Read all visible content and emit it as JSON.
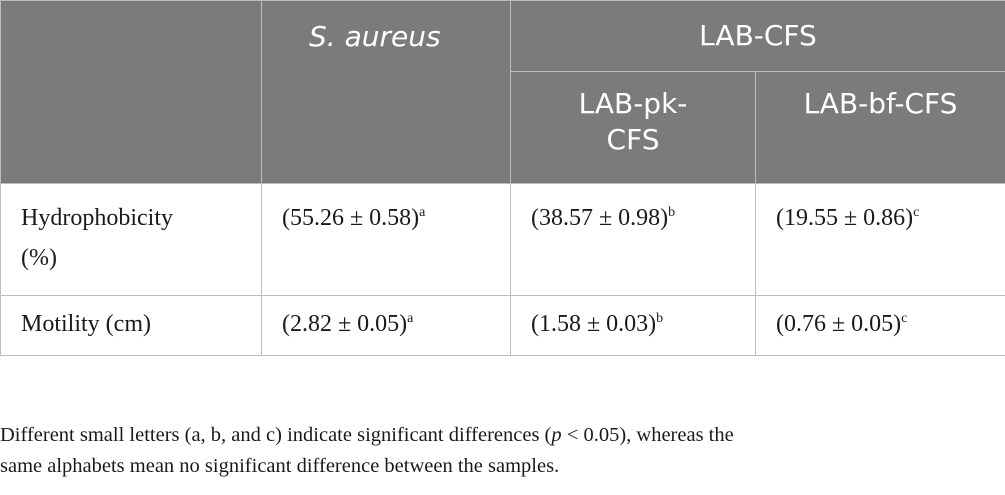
{
  "table": {
    "header": {
      "col1": "S. aureus",
      "group": "LAB-CFS",
      "col2_line1": "LAB-pk-",
      "col2_line2": "CFS",
      "col3": "LAB-bf-CFS"
    },
    "rows": [
      {
        "label_line1": "Hydrophobicity",
        "label_line2": "(%)",
        "v1": "(55.26 ± 0.58)",
        "s1": "a",
        "v2": "(38.57 ± 0.98)",
        "s2": "b",
        "v3": "(19.55 ± 0.86)",
        "s3": "c"
      },
      {
        "label_line1": "Motility (cm)",
        "v1": "(2.82 ± 0.05)",
        "s1": "a",
        "v2": "(1.58 ± 0.03)",
        "s2": "b",
        "v3": "(0.76 ± 0.05)",
        "s3": "c"
      }
    ]
  },
  "footnote": {
    "part1": "Different small letters (a, b, and c) indicate significant differences (",
    "p": "p",
    "part2": " < 0.05), whereas the",
    "line2": "same alphabets mean no significant difference between the samples."
  }
}
